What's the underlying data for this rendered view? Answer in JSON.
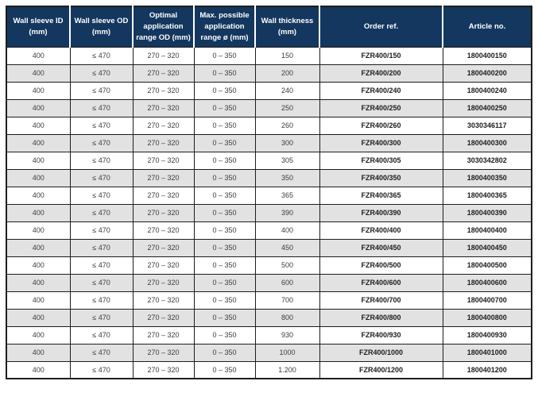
{
  "colors": {
    "header_bg": "#14375f",
    "header_text": "#ffffff",
    "row_alt_bg": "#e2e2e2",
    "grid_line": "#1d1d1b",
    "body_text": "#3c3c3b"
  },
  "table": {
    "columns": [
      "Wall sleeve ID (mm)",
      "Wall sleeve OD (mm)",
      "Optimal application range OD (mm)",
      "Max. possible application range ø (mm)",
      "Wall thickness (mm)",
      "Order ref.",
      "Article no."
    ],
    "rows": [
      [
        "400",
        "≤ 470",
        "270 – 320",
        "0 – 350",
        "150",
        "FZR400/150",
        "1800400150"
      ],
      [
        "400",
        "≤ 470",
        "270 – 320",
        "0 – 350",
        "200",
        "FZR400/200",
        "1800400200"
      ],
      [
        "400",
        "≤ 470",
        "270 – 320",
        "0 – 350",
        "240",
        "FZR400/240",
        "1800400240"
      ],
      [
        "400",
        "≤ 470",
        "270 – 320",
        "0 – 350",
        "250",
        "FZR400/250",
        "1800400250"
      ],
      [
        "400",
        "≤ 470",
        "270 – 320",
        "0 – 350",
        "260",
        "FZR400/260",
        "3030346117"
      ],
      [
        "400",
        "≤ 470",
        "270 – 320",
        "0 – 350",
        "300",
        "FZR400/300",
        "1800400300"
      ],
      [
        "400",
        "≤ 470",
        "270 – 320",
        "0 – 350",
        "305",
        "FZR400/305",
        "3030342802"
      ],
      [
        "400",
        "≤ 470",
        "270 – 320",
        "0 – 350",
        "350",
        "FZR400/350",
        "1800400350"
      ],
      [
        "400",
        "≤ 470",
        "270 – 320",
        "0 – 350",
        "365",
        "FZR400/365",
        "1800400365"
      ],
      [
        "400",
        "≤ 470",
        "270 – 320",
        "0 – 350",
        "390",
        "FZR400/390",
        "1800400390"
      ],
      [
        "400",
        "≤ 470",
        "270 – 320",
        "0 – 350",
        "400",
        "FZR400/400",
        "1800400400"
      ],
      [
        "400",
        "≤ 470",
        "270 – 320",
        "0 – 350",
        "450",
        "FZR400/450",
        "1800400450"
      ],
      [
        "400",
        "≤ 470",
        "270 – 320",
        "0 – 350",
        "500",
        "FZR400/500",
        "1800400500"
      ],
      [
        "400",
        "≤ 470",
        "270 – 320",
        "0 – 350",
        "600",
        "FZR400/600",
        "1800400600"
      ],
      [
        "400",
        "≤ 470",
        "270 – 320",
        "0 – 350",
        "700",
        "FZR400/700",
        "1800400700"
      ],
      [
        "400",
        "≤ 470",
        "270 – 320",
        "0 – 350",
        "800",
        "FZR400/800",
        "1800400800"
      ],
      [
        "400",
        "≤ 470",
        "270 – 320",
        "0 – 350",
        "930",
        "FZR400/930",
        "1800400930"
      ],
      [
        "400",
        "≤ 470",
        "270 – 320",
        "0 – 350",
        "1000",
        "FZR400/1000",
        "1800401000"
      ],
      [
        "400",
        "≤ 470",
        "270 – 320",
        "0 – 350",
        "1.200",
        "FZR400/1200",
        "1800401200"
      ]
    ]
  }
}
